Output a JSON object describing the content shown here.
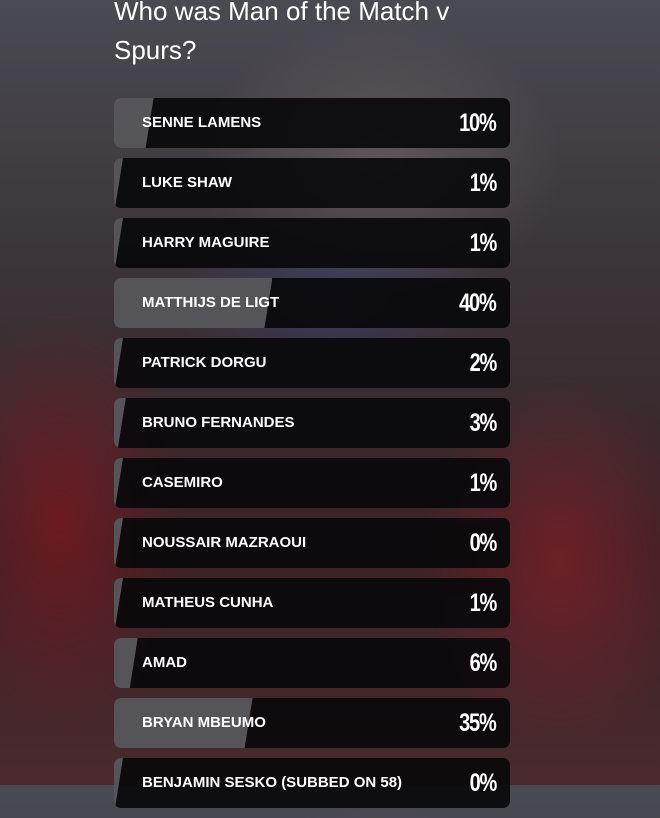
{
  "poll": {
    "title": "Who was Man of the Match v Spurs?",
    "options": [
      {
        "name": "SENNE LAMENS",
        "percent": 10,
        "label": "10%"
      },
      {
        "name": "LUKE SHAW",
        "percent": 1,
        "label": "1%"
      },
      {
        "name": "HARRY MAGUIRE",
        "percent": 1,
        "label": "1%"
      },
      {
        "name": "MATTHIJS DE LIGT",
        "percent": 40,
        "label": "40%"
      },
      {
        "name": "PATRICK DORGU",
        "percent": 2,
        "label": "2%"
      },
      {
        "name": "BRUNO FERNANDES",
        "percent": 3,
        "label": "3%"
      },
      {
        "name": "CASEMIRO",
        "percent": 1,
        "label": "1%"
      },
      {
        "name": "NOUSSAIR MAZRAOUI",
        "percent": 0,
        "label": "0%"
      },
      {
        "name": "MATHEUS CUNHA",
        "percent": 1,
        "label": "1%"
      },
      {
        "name": "AMAD",
        "percent": 6,
        "label": "6%"
      },
      {
        "name": "BRYAN MBEUMO",
        "percent": 35,
        "label": "35%"
      },
      {
        "name": "BENJAMIN SESKO (SUBBED ON 58)",
        "percent": 0,
        "label": "0%"
      }
    ]
  }
}
